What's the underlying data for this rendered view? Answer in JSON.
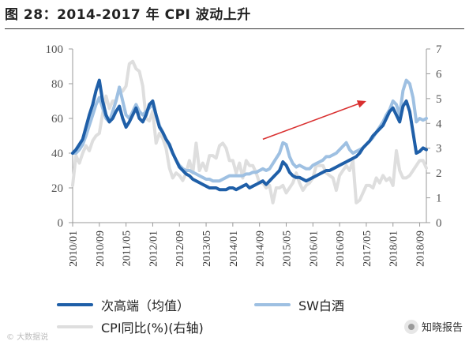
{
  "figure": {
    "title": "图 28：2014-2017 年 CPI 波动上升",
    "watermark": "© 大数据说",
    "source_label": "知晓报告"
  },
  "colors": {
    "series1": "#1f5fa8",
    "series2": "#9ec0e2",
    "series3": "#dedede",
    "arrow": "#d93030",
    "axis": "#999999"
  },
  "chart_data": {
    "type": "line",
    "title": "2014-2017 年 CPI 波动上升",
    "x_tick_labels": [
      "2010/01",
      "2010/09",
      "2011/05",
      "2012/01",
      "2012/09",
      "2013/05",
      "2014/01",
      "2014/09",
      "2015/05",
      "2016/01",
      "2016/09",
      "2017/05",
      "2018/01",
      "2018/09"
    ],
    "x_months": [
      "2010/01",
      "2010/02",
      "2010/03",
      "2010/04",
      "2010/05",
      "2010/06",
      "2010/07",
      "2010/08",
      "2010/09",
      "2010/10",
      "2010/11",
      "2010/12",
      "2011/01",
      "2011/02",
      "2011/03",
      "2011/04",
      "2011/05",
      "2011/06",
      "2011/07",
      "2011/08",
      "2011/09",
      "2011/10",
      "2011/11",
      "2011/12",
      "2012/01",
      "2012/02",
      "2012/03",
      "2012/04",
      "2012/05",
      "2012/06",
      "2012/07",
      "2012/08",
      "2012/09",
      "2012/10",
      "2012/11",
      "2012/12",
      "2013/01",
      "2013/02",
      "2013/03",
      "2013/04",
      "2013/05",
      "2013/06",
      "2013/07",
      "2013/08",
      "2013/09",
      "2013/10",
      "2013/11",
      "2013/12",
      "2014/01",
      "2014/02",
      "2014/03",
      "2014/04",
      "2014/05",
      "2014/06",
      "2014/07",
      "2014/08",
      "2014/09",
      "2014/10",
      "2014/11",
      "2014/12",
      "2015/01",
      "2015/02",
      "2015/03",
      "2015/04",
      "2015/05",
      "2015/06",
      "2015/07",
      "2015/08",
      "2015/09",
      "2015/10",
      "2015/11",
      "2015/12",
      "2016/01",
      "2016/02",
      "2016/03",
      "2016/04",
      "2016/05",
      "2016/06",
      "2016/07",
      "2016/08",
      "2016/09",
      "2016/10",
      "2016/11",
      "2016/12",
      "2017/01",
      "2017/02",
      "2017/03",
      "2017/04",
      "2017/05",
      "2017/06",
      "2017/07",
      "2017/08",
      "2017/09",
      "2017/10",
      "2017/11",
      "2017/12",
      "2018/01",
      "2018/02",
      "2018/03",
      "2018/04",
      "2018/05",
      "2018/06",
      "2018/07",
      "2018/08",
      "2018/09",
      "2018/10",
      "2018/11"
    ],
    "y_left": {
      "min": 0,
      "max": 100,
      "ticks": [
        0,
        20,
        40,
        60,
        80,
        100
      ]
    },
    "y_right": {
      "min": 0,
      "max": 7,
      "ticks": [
        0,
        1,
        2,
        3,
        4,
        5,
        6,
        7
      ]
    },
    "series": [
      {
        "name": "次高端（均值）",
        "axis": "left",
        "values": [
          40,
          42,
          45,
          48,
          55,
          62,
          68,
          76,
          82,
          70,
          62,
          58,
          60,
          64,
          67,
          60,
          55,
          58,
          62,
          66,
          60,
          58,
          62,
          68,
          70,
          62,
          55,
          52,
          48,
          45,
          40,
          36,
          32,
          30,
          28,
          27,
          25,
          24,
          23,
          22,
          21,
          20,
          20,
          20,
          19,
          19,
          19,
          20,
          20,
          19,
          20,
          21,
          22,
          20,
          21,
          22,
          23,
          24,
          22,
          24,
          26,
          28,
          30,
          35,
          33,
          29,
          27,
          26,
          26,
          25,
          24,
          25,
          26,
          27,
          28,
          29,
          30,
          30,
          31,
          32,
          33,
          34,
          35,
          36,
          37,
          38,
          40,
          43,
          45,
          47,
          50,
          52,
          54,
          56,
          60,
          64,
          66,
          62,
          58,
          67,
          70,
          64,
          52,
          40,
          41,
          43,
          42
        ]
      },
      {
        "name": "SW白酒",
        "axis": "left",
        "values": [
          40,
          40,
          42,
          45,
          50,
          56,
          62,
          68,
          72,
          66,
          60,
          58,
          64,
          70,
          78,
          70,
          62,
          60,
          64,
          68,
          64,
          62,
          64,
          66,
          68,
          62,
          56,
          52,
          48,
          44,
          40,
          36,
          33,
          31,
          30,
          30,
          29,
          28,
          27,
          26,
          25,
          25,
          24,
          24,
          24,
          25,
          26,
          27,
          27,
          27,
          27,
          27,
          28,
          28,
          29,
          29,
          30,
          31,
          30,
          31,
          34,
          37,
          40,
          46,
          45,
          38,
          34,
          32,
          33,
          32,
          31,
          31,
          33,
          34,
          35,
          36,
          38,
          38,
          39,
          40,
          42,
          44,
          46,
          42,
          40,
          41,
          42,
          43,
          45,
          47,
          49,
          52,
          55,
          58,
          62,
          65,
          70,
          68,
          62,
          76,
          82,
          80,
          72,
          58,
          60,
          59,
          60
        ]
      },
      {
        "name": "CPI同比(%)(右轴)",
        "axis": "right",
        "values": [
          1.5,
          2.7,
          2.4,
          2.8,
          3.1,
          2.9,
          3.3,
          3.5,
          3.6,
          4.4,
          5.1,
          4.6,
          4.9,
          4.9,
          5.4,
          5.3,
          5.5,
          6.4,
          6.5,
          6.2,
          6.1,
          5.5,
          4.2,
          4.1,
          4.5,
          3.2,
          3.6,
          3.4,
          3.0,
          2.2,
          1.8,
          2.0,
          1.9,
          1.7,
          2.0,
          2.5,
          2.0,
          3.2,
          2.1,
          2.4,
          2.1,
          2.7,
          2.7,
          2.6,
          3.1,
          3.2,
          3.0,
          2.5,
          2.5,
          2.0,
          2.4,
          1.8,
          2.5,
          2.3,
          2.3,
          2.0,
          1.6,
          1.6,
          1.4,
          1.5,
          0.8,
          1.4,
          1.4,
          1.5,
          1.2,
          1.4,
          1.6,
          2.0,
          1.6,
          1.3,
          1.5,
          1.6,
          1.8,
          2.3,
          2.3,
          2.3,
          2.0,
          1.9,
          1.8,
          1.3,
          1.9,
          2.1,
          2.3,
          2.1,
          2.5,
          0.8,
          0.9,
          1.2,
          1.5,
          1.5,
          1.4,
          1.8,
          1.6,
          1.9,
          1.7,
          1.8,
          1.5,
          2.9,
          2.1,
          1.8,
          1.8,
          1.9,
          2.1,
          2.3,
          2.5,
          2.5,
          2.2
        ]
      }
    ],
    "annotations": [
      {
        "type": "arrow",
        "from": {
          "x": "2014/10",
          "y": 48
        },
        "to": {
          "x": "2017/05",
          "y": 70
        }
      }
    ],
    "grid": false,
    "legend": "bottom"
  },
  "legend_items": [
    {
      "label": "次高端（均值）"
    },
    {
      "label": "SW白酒"
    },
    {
      "label": "CPI同比(%)(右轴)"
    }
  ]
}
